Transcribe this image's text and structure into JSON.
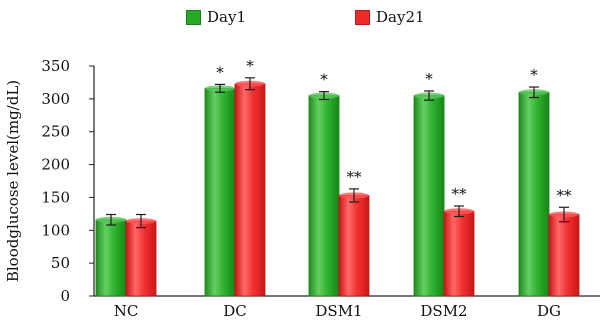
{
  "chart_data": {
    "type": "bar",
    "title": "",
    "xlabel": "",
    "ylabel": "Bloodglucose level(mg/dL)",
    "categories": [
      "NC",
      "DC",
      "DSM1",
      "DSM2",
      "DG"
    ],
    "ylim": [
      0,
      350
    ],
    "yticks": [
      0,
      50,
      100,
      150,
      200,
      250,
      300,
      350
    ],
    "legend_position": "top",
    "grid": false,
    "series": [
      {
        "name": "Day1",
        "color": "#27a927",
        "values": [
          116,
          316,
          305,
          305,
          310
        ],
        "errors": [
          8,
          6,
          6,
          7,
          8
        ],
        "annotations": [
          "",
          "*",
          "*",
          "*",
          "*"
        ]
      },
      {
        "name": "Day21",
        "color": "#ee2a27",
        "values": [
          114,
          323,
          153,
          129,
          124
        ],
        "errors": [
          10,
          9,
          10,
          8,
          11
        ],
        "annotations": [
          "",
          "*",
          "**",
          "**",
          "**"
        ]
      }
    ]
  }
}
